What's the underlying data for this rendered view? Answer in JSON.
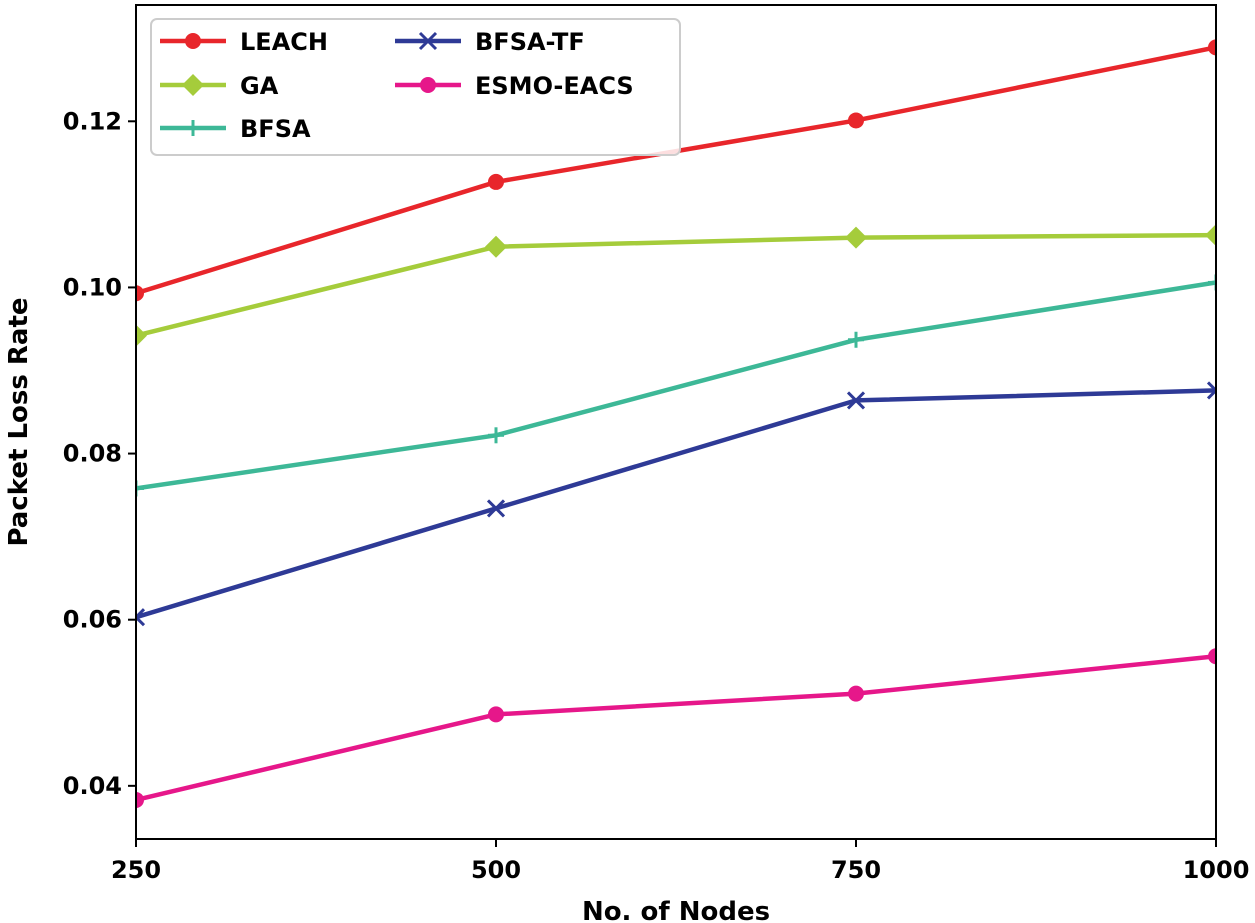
{
  "chart_data": {
    "type": "line",
    "title": "",
    "xlabel": "No. of Nodes",
    "ylabel": "Packet Loss Rate",
    "x": [
      250,
      500,
      750,
      1000
    ],
    "xlim": [
      250,
      1000
    ],
    "ylim": [
      0.0336,
      0.134
    ],
    "xticks": [
      250,
      500,
      750,
      1000
    ],
    "xtick_labels": [
      "250",
      "500",
      "750",
      "1000"
    ],
    "yticks": [
      0.04,
      0.06,
      0.08,
      0.1,
      0.12
    ],
    "ytick_labels": [
      "0.04",
      "0.06",
      "0.08",
      "0.10",
      "0.12"
    ],
    "legend_position": "top-left",
    "grid": false,
    "series": [
      {
        "name": "LEACH",
        "color": "#e8262b",
        "marker": "circle",
        "values": [
          0.0993,
          0.1127,
          0.1201,
          0.1289
        ]
      },
      {
        "name": "GA",
        "color": "#a5cc3b",
        "marker": "diamond",
        "values": [
          0.0942,
          0.1049,
          0.106,
          0.1063
        ]
      },
      {
        "name": "BFSA",
        "color": "#3db897",
        "marker": "plus",
        "values": [
          0.0758,
          0.0822,
          0.0937,
          0.1006
        ]
      },
      {
        "name": "BFSA-TF",
        "color": "#2e3a96",
        "marker": "x",
        "values": [
          0.0603,
          0.0734,
          0.0864,
          0.0876
        ]
      },
      {
        "name": "ESMO-EACS",
        "color": "#e6178a",
        "marker": "circle",
        "values": [
          0.0383,
          0.0486,
          0.0511,
          0.0556
        ]
      }
    ]
  }
}
